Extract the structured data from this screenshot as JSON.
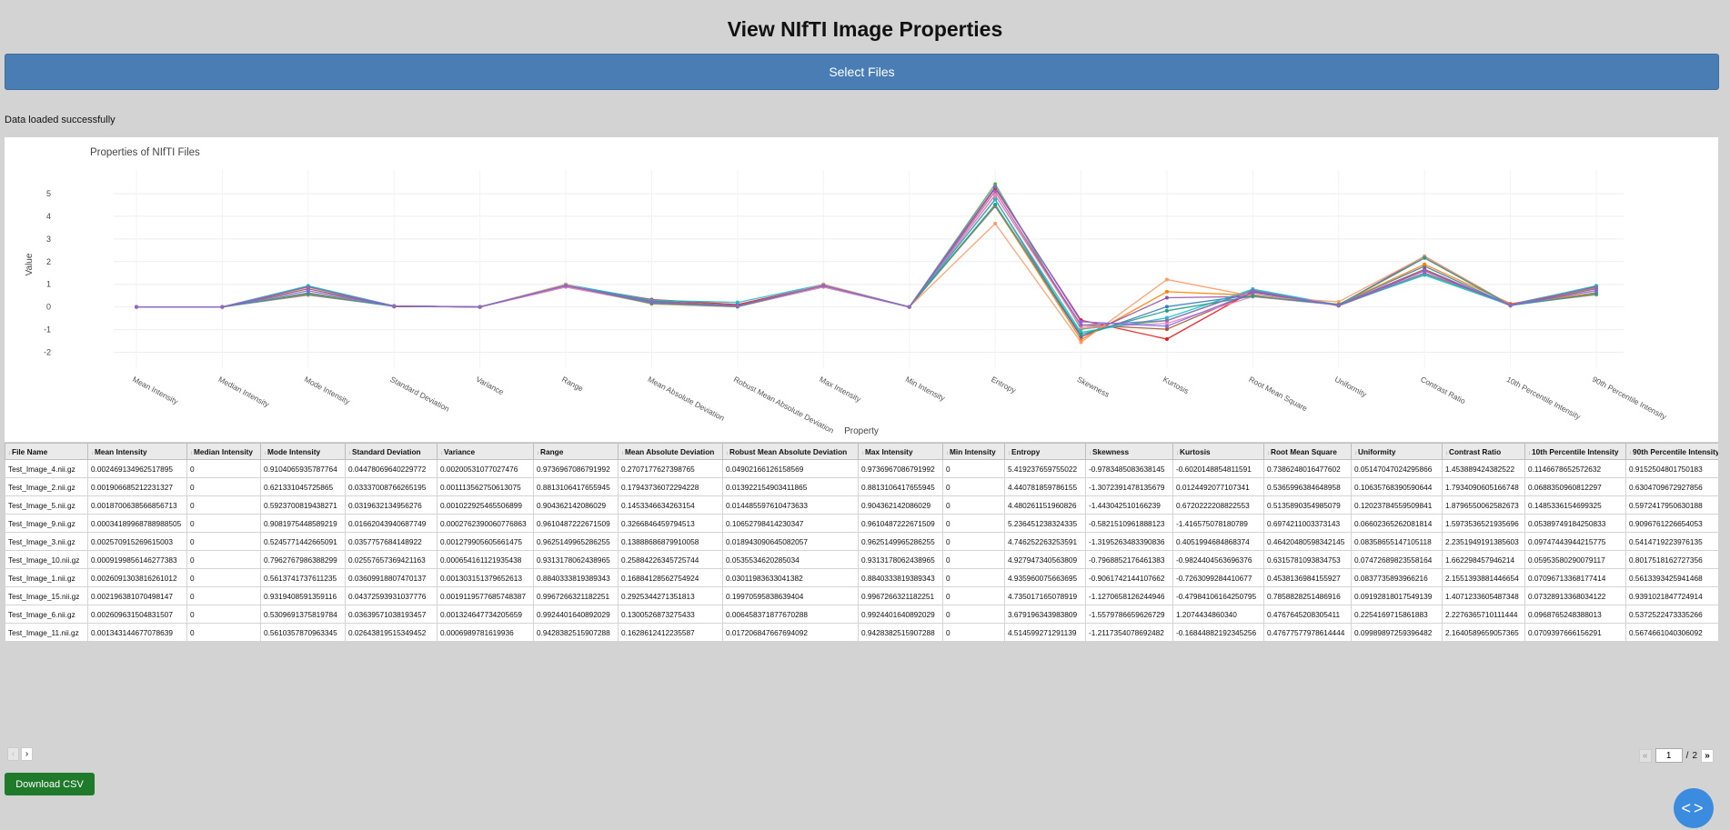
{
  "page": {
    "title": "View NIfTI Image Properties"
  },
  "select_files_label": "Select Files",
  "status_text": "Data loaded successfully",
  "download_label": "Download CSV",
  "code_toggle_icon": "code-icon",
  "pagination": {
    "current_page": "1",
    "separator": "/",
    "total_pages": "2",
    "prev_label": "‹",
    "next_label": "›",
    "first_label": "«",
    "last_label": "»"
  },
  "chart_data": {
    "type": "line",
    "title": "Properties of NIfTI Files",
    "xlabel": "Property",
    "ylabel": "Value",
    "ylim": [
      -2.3,
      5.8
    ],
    "yticks": [
      -2,
      -1,
      0,
      1,
      2,
      3,
      4,
      5
    ],
    "grid": true,
    "categories": [
      "Mean Intensity",
      "Median Intensity",
      "Mode Intensity",
      "Standard Deviation",
      "Variance",
      "Range",
      "Mean Absolute Deviation",
      "Robust Mean Absolute Deviation",
      "Max Intensity",
      "Min Intensity",
      "Entropy",
      "Skewness",
      "Kurtosis",
      "Root Mean Square",
      "Uniformity",
      "Contrast Ratio",
      "10th Percentile Intensity",
      "90th Percentile Intensity"
    ],
    "series": [
      {
        "color": "#4daf4a",
        "values": [
          0.0025,
          0,
          0.9104,
          0.0448,
          0.002,
          0.9737,
          0.2707,
          0.049,
          0.9737,
          0,
          5.4192,
          -0.9783,
          -0.602,
          0.7386,
          0.0515,
          1.4539,
          0.1147,
          0.9153
        ]
      },
      {
        "color": "#377eb8",
        "values": [
          0.0019,
          0,
          0.6213,
          0.0334,
          0.0011,
          0.8813,
          0.1794,
          0.0139,
          0.8813,
          0,
          4.4408,
          -1.3072,
          0.0124,
          0.5366,
          0.1064,
          1.7934,
          0.0688,
          0.6305
        ]
      },
      {
        "color": "#ff7f00",
        "values": [
          0.0019,
          0,
          0.5924,
          0.032,
          0.001,
          0.9044,
          0.1453,
          0.0145,
          0.9044,
          0,
          4.4803,
          -1.443,
          0.672,
          0.5136,
          0.1202,
          1.8797,
          0.1485,
          0.5972
        ]
      },
      {
        "color": "#e41a1c",
        "values": [
          0.0003,
          0,
          0.9082,
          0.0166,
          0.0003,
          0.961,
          0.3267,
          0.1065,
          0.961,
          0,
          5.2365,
          -0.5822,
          -1.4166,
          0.6974,
          0.066,
          1.5974,
          0.0539,
          0.9097
        ]
      },
      {
        "color": "#984ea3",
        "values": [
          0.0026,
          0,
          0.5246,
          0.0358,
          0.0013,
          0.9625,
          0.1389,
          0.0189,
          0.9625,
          0,
          4.7463,
          -1.3195,
          0.4051,
          0.4642,
          0.0836,
          2.2352,
          0.0975,
          0.5414
        ]
      },
      {
        "color": "#a65628",
        "values": [
          0.0009,
          0,
          0.7963,
          0.0256,
          0.0007,
          0.9313,
          0.2588,
          0.0535,
          0.9313,
          0,
          4.928,
          -0.7969,
          -0.9824,
          0.6315,
          0.0747,
          1.6623,
          0.0595,
          0.8018
        ]
      },
      {
        "color": "#f781bf",
        "values": [
          0.0026,
          0,
          0.5614,
          0.0361,
          0.0013,
          0.884,
          0.1688,
          0.0301,
          0.884,
          0,
          4.936,
          -0.9062,
          -0.7263,
          0.4538,
          0.0838,
          2.1551,
          0.071,
          0.5613
        ]
      },
      {
        "color": "#17becf",
        "values": [
          0.0022,
          0,
          0.9319,
          0.0437,
          0.0019,
          0.9967,
          0.2925,
          0.1997,
          0.9967,
          0,
          4.735,
          -1.1271,
          -0.4798,
          0.7859,
          0.0919,
          1.4071,
          0.0733,
          0.9391
        ]
      },
      {
        "color": "#ff9966",
        "values": [
          0.0026,
          0,
          0.531,
          0.0364,
          0.0013,
          0.9924,
          0.1301,
          0.0065,
          0.9924,
          0,
          3.6792,
          -1.558,
          1.2074,
          0.4768,
          0.2254,
          2.2276,
          0.0969,
          0.5373
        ]
      },
      {
        "color": "#1f9e89",
        "values": [
          0.0013,
          0,
          0.561,
          0.0264,
          0.0007,
          0.9428,
          0.1629,
          0.0173,
          0.9428,
          0,
          4.5146,
          -1.2117,
          -0.1684,
          0.4768,
          0.0999,
          2.1641,
          0.0709,
          0.5675
        ]
      },
      {
        "color": "#7b68ee",
        "values": [
          0.0021,
          0,
          0.71,
          0.039,
          0.0015,
          0.95,
          0.23,
          0.05,
          0.95,
          0,
          5.3,
          -0.65,
          -0.85,
          0.64,
          0.07,
          1.6,
          0.08,
          0.72
        ]
      },
      {
        "color": "#9467bd",
        "values": [
          0.0021,
          0,
          0.87,
          0.041,
          0.0017,
          0.93,
          0.21,
          0.04,
          0.93,
          0,
          5.1,
          -0.8,
          -0.6,
          0.72,
          0.06,
          1.5,
          0.11,
          0.86
        ]
      }
    ]
  },
  "table": {
    "headers": [
      "File Name",
      "Mean Intensity",
      "Median Intensity",
      "Mode Intensity",
      "Standard Deviation",
      "Variance",
      "Range",
      "Mean Absolute Deviation",
      "Robust Mean Absolute Deviation",
      "Max Intensity",
      "Min Intensity",
      "Entropy",
      "Skewness",
      "Kurtosis",
      "Root Mean Square",
      "Uniformity",
      "Contrast Ratio",
      "10th Percentile Intensity",
      "90th Percentile Intensity"
    ],
    "rows": [
      [
        "Test_Image_4.nii.gz",
        "0.002469134962517895",
        "0",
        "0.9104065935787764",
        "0.04478069640229772",
        "0.00200531077027476",
        "0.9736967086791992",
        "0.2707177627398765",
        "0.04902166126158569",
        "0.9736967086791992",
        "0",
        "5.419237659755022",
        "-0.9783485083638145",
        "-0.6020148854811591",
        "0.7386248016477602",
        "0.05147047024295866",
        "1.453889424382522",
        "0.1146678652572632",
        "0.9152504801750183"
      ],
      [
        "Test_Image_2.nii.gz",
        "0.001906685212231327",
        "0",
        "0.621331045725865",
        "0.03337008766265195",
        "0.001113562750613075",
        "0.8813106417655945",
        "0.17943736072294228",
        "0.013922154903411865",
        "0.8813106417655945",
        "0",
        "4.440781859786155",
        "-1.3072391478135679",
        "0.0124492077107341",
        "0.5365996384648958",
        "0.10635768390590644",
        "1.7934090605166748",
        "0.0688350960812297",
        "0.6304709672927856"
      ],
      [
        "Test_Image_5.nii.gz",
        "0.0018700638566856713",
        "0",
        "0.5923700819438271",
        "0.0319632134956276",
        "0.001022925465506899",
        "0.904362142086029",
        "0.1453346634263154",
        "0.014485597610473633",
        "0.904362142086029",
        "0",
        "4.480261151960826",
        "-1.443042510166239",
        "0.6720222208822553",
        "0.5135890354985079",
        "0.12023784559509841",
        "1.8796550062582673",
        "0.1485336154699325",
        "0.5972417950630188"
      ],
      [
        "Test_Image_9.nii.gz",
        "0.00034189968788988505",
        "0",
        "0.9081975448589219",
        "0.01662043940687749",
        "0.0002762390060776863",
        "0.9610487222671509",
        "0.3266846459794513",
        "0.10652798414230347",
        "0.9610487222671509",
        "0",
        "5.236451238324335",
        "-0.5821510961888123",
        "-1.416575078180789",
        "0.6974211003373143",
        "0.06602365262081814",
        "1.5973536521935696",
        "0.05389749184250833",
        "0.9096761226654053"
      ],
      [
        "Test_Image_3.nii.gz",
        "0.002570915269615003",
        "0",
        "0.5245771442665091",
        "0.0357757684148922",
        "0.001279905605661475",
        "0.9625149965286255",
        "0.13888686879910058",
        "0.018943090645082057",
        "0.9625149965286255",
        "0",
        "4.746252263253591",
        "-1.3195263483390836",
        "0.4051994684868374",
        "0.46420480598342145",
        "0.08358655147105118",
        "2.2351949191385603",
        "0.09747443944215775",
        "0.5414719223976135"
      ],
      [
        "Test_Image_10.nii.gz",
        "0.0009199856146277383",
        "0",
        "0.7962767986388299",
        "0.02557657369421163",
        "0.000654161121935438",
        "0.9313178062438965",
        "0.25884226345725744",
        "0.0535534620285034",
        "0.9313178062438965",
        "0",
        "4.927947340563809",
        "-0.7968852176461383",
        "-0.9824404563696376",
        "0.6315781093834753",
        "0.07472689823558164",
        "1.662298457946214",
        "0.05953580290079117",
        "0.8017518162727356"
      ],
      [
        "Test_Image_1.nii.gz",
        "0.0026091303816261012",
        "0",
        "0.5613741737611235",
        "0.03609918807470137",
        "0.001303151379652613",
        "0.8840333819389343",
        "0.16884128562754924",
        "0.03011983633041382",
        "0.8840333819389343",
        "0",
        "4.935960075663695",
        "-0.9061742144107662",
        "-0.7263099284410677",
        "0.4538136984155927",
        "0.0837735893966216",
        "2.1551393881446654",
        "0.07096713368177414",
        "0.5613393425941468"
      ],
      [
        "Test_Image_15.nii.gz",
        "0.002196381070498147",
        "0",
        "0.9319408591359116",
        "0.04372593931037776",
        "0.0019119577685748387",
        "0.9967266321182251",
        "0.2925344271351813",
        "0.19970595838639404",
        "0.9967266321182251",
        "0",
        "4.735017165078919",
        "-1.1270658126244946",
        "-0.47984106164250795",
        "0.7858828251486916",
        "0.09192818017549139",
        "1.4071233605487348",
        "0.07328913368034122",
        "0.9391021847724914"
      ],
      [
        "Test_Image_6.nii.gz",
        "0.002609631504831507",
        "0",
        "0.5309691375819784",
        "0.03639571038193457",
        "0.001324647734205659",
        "0.9924401640892029",
        "0.1300526873275433",
        "0.006458371877670288",
        "0.9924401640892029",
        "0",
        "3.679196343983809",
        "-1.5579786659626729",
        "1.2074434860340",
        "0.4767645208305411",
        "0.2254169715861883",
        "2.2276365710111444",
        "0.0968765248388013",
        "0.5372522473335266"
      ],
      [
        "Test_Image_11.nii.gz",
        "0.001343144677078639",
        "0",
        "0.5610357870963345",
        "0.02643819515349452",
        "0.0006989781619936",
        "0.9428382515907288",
        "0.1628612412235587",
        "0.017206847667694092",
        "0.9428382515907288",
        "0",
        "4.514599271291139",
        "-1.2117354078692482",
        "-0.16844882192345256",
        "0.47677577978614444",
        "0.09989897259396482",
        "2.1640589659057365",
        "0.0709397666156291",
        "0.5674661040306092"
      ]
    ]
  }
}
